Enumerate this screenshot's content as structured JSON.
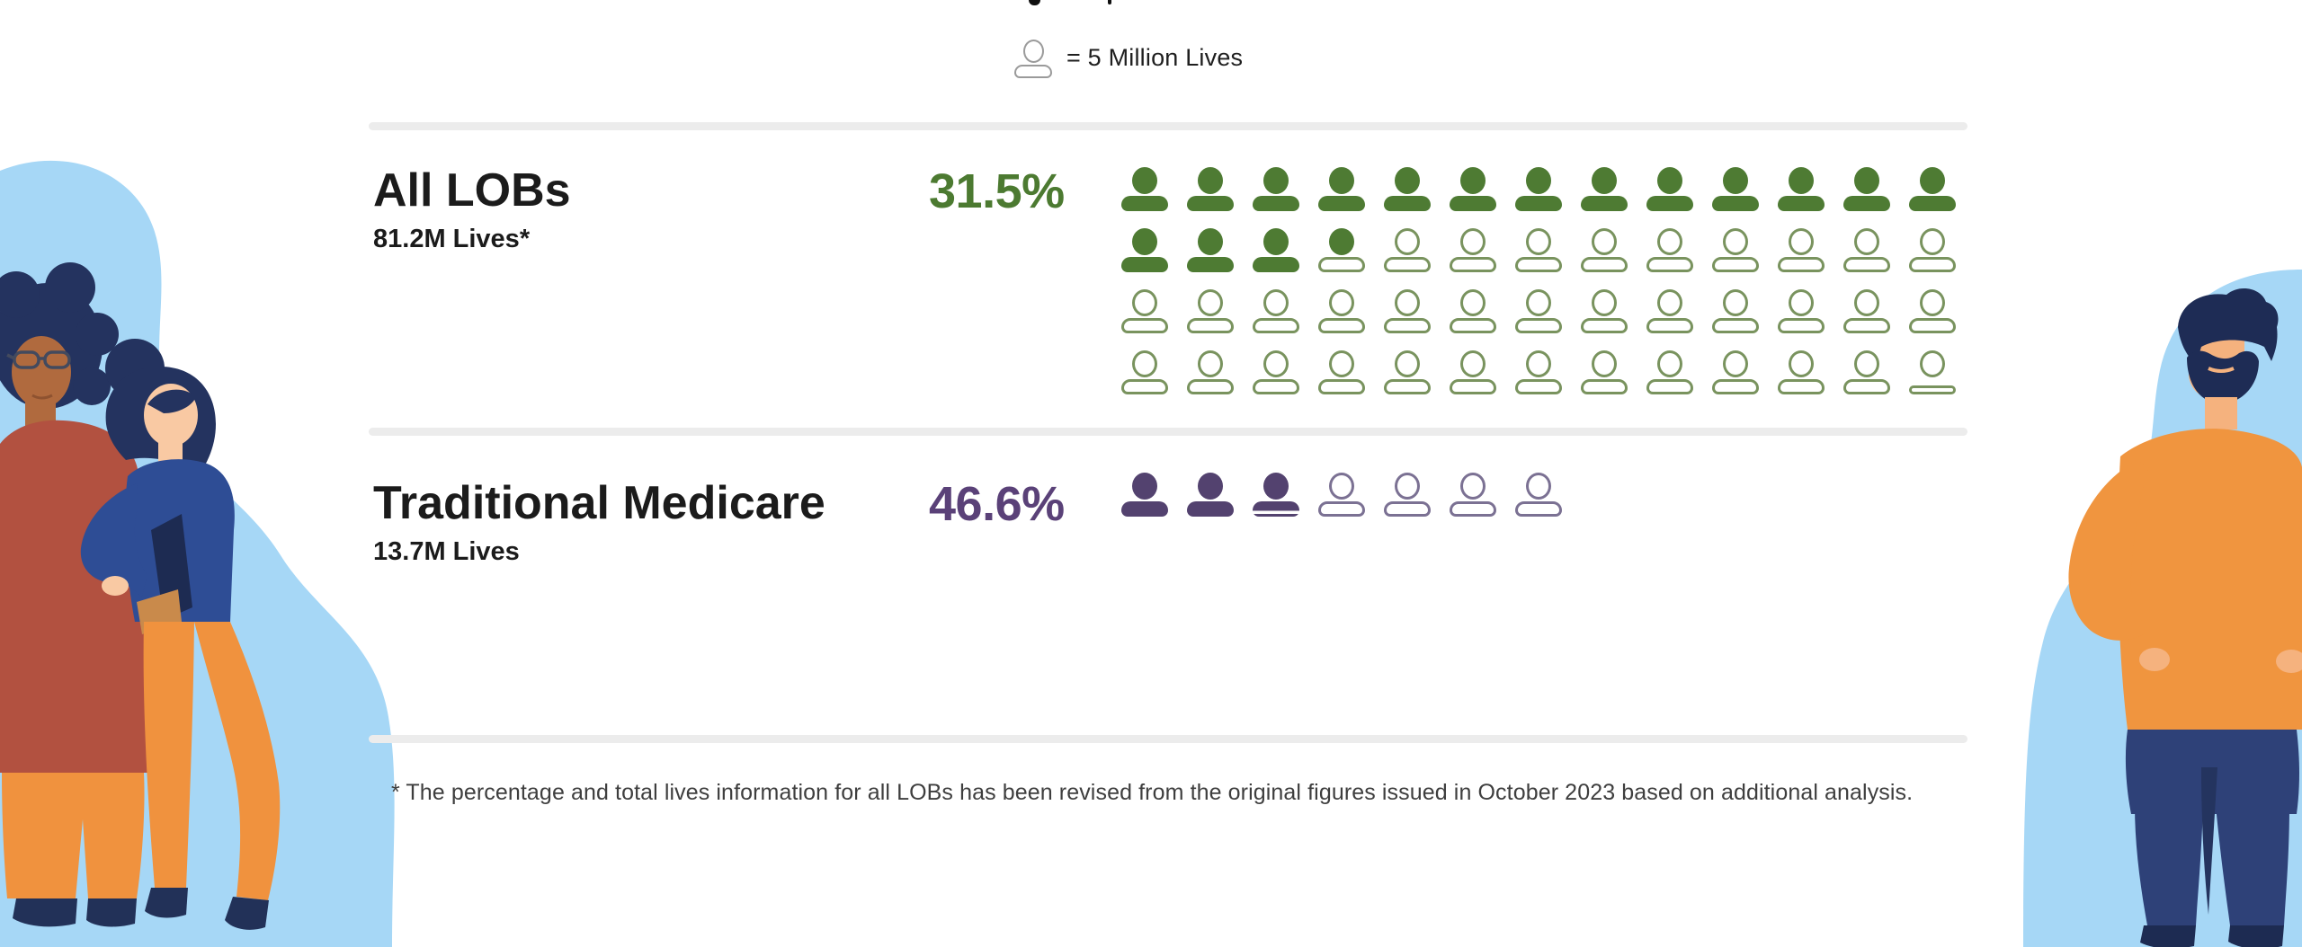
{
  "legend": {
    "label": "= 5 Million Lives"
  },
  "sections": [
    {
      "id": "all_lobs",
      "title": "All LOBs",
      "subtitle": "81.2M Lives*",
      "percent": "31.5%",
      "colors": {
        "fill": "#4e7b33",
        "outline": "#79935e",
        "percent_text": "#4c7a31"
      },
      "icons": {
        "columns": 13,
        "cells": [
          "filled",
          "filled",
          "filled",
          "filled",
          "filled",
          "filled",
          "filled",
          "filled",
          "filled",
          "filled",
          "filled",
          "filled",
          "filled",
          "filled",
          "filled",
          "filled",
          "head",
          "outline",
          "outline",
          "outline",
          "outline",
          "outline",
          "outline",
          "outline",
          "outline",
          "outline",
          "outline",
          "outline",
          "outline",
          "outline",
          "outline",
          "outline",
          "outline",
          "outline",
          "outline",
          "outline",
          "outline",
          "outline",
          "outline",
          "outline",
          "outline",
          "outline",
          "outline",
          "outline",
          "outline",
          "outline",
          "outline",
          "outline",
          "outline",
          "outline",
          "outline",
          "flat"
        ]
      }
    },
    {
      "id": "traditional_medicare",
      "title": "Traditional Medicare",
      "subtitle": "13.7M Lives",
      "percent": "46.6%",
      "colors": {
        "fill": "#53426f",
        "outline": "#7b7193",
        "percent_text": "#5a4178"
      },
      "icons": {
        "columns": 13,
        "cells": [
          "filled",
          "filled",
          "partial",
          "outline",
          "outline",
          "outline",
          "outline"
        ]
      }
    }
  ],
  "footnote": "* The percentage and total lives information for all LOBs has been revised from the original figures issued in October 2023 based on additional analysis.",
  "chart_data": {
    "type": "pictograph",
    "legend": "= 5 Million Lives",
    "unit_millions_per_icon": 5,
    "series": [
      {
        "label": "All LOBs",
        "sublabel": "81.2M Lives*",
        "percent": 31.5,
        "lives_millions": 81.2,
        "icons_filled": 16.24,
        "icons_total": 52,
        "icons_per_row": 13,
        "color": "#4e7b33"
      },
      {
        "label": "Traditional Medicare",
        "sublabel": "13.7M Lives",
        "percent": 46.6,
        "lives_millions": 13.7,
        "icons_filled": 2.74,
        "icons_total": 7,
        "icons_per_row": 7,
        "color": "#53426f"
      }
    ],
    "footnote": "* The percentage and total lives information for all LOBs has been revised from the original figures issued in October 2023 based on additional analysis."
  }
}
